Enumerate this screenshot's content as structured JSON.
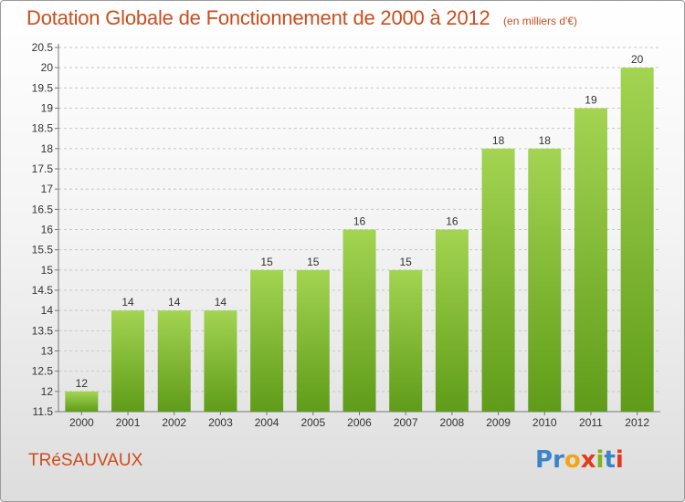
{
  "header": {
    "title": "Dotation Globale de Fonctionnement de 2000 à 2012",
    "subtitle": "(en milliers d'€)"
  },
  "commune": "TRéSAUVAUX",
  "logo": {
    "text": "Proxiti",
    "letter_colors": [
      "#3d83c8",
      "#3d83c8",
      "#f2a51a",
      "#e03c1c",
      "#7cb41e",
      "#3d83c8",
      "#e03c1c"
    ]
  },
  "colors": {
    "bar_light": "#a3d452",
    "bar_dark": "#5f9c19",
    "grid": "#c8c8c8",
    "title": "#cc4d1c"
  },
  "chart_data": {
    "type": "bar",
    "categories": [
      "2000",
      "2001",
      "2002",
      "2003",
      "2004",
      "2005",
      "2006",
      "2007",
      "2008",
      "2009",
      "2010",
      "2011",
      "2012"
    ],
    "values": [
      12,
      14,
      14,
      14,
      15,
      15,
      16,
      15,
      16,
      18,
      18,
      19,
      20
    ],
    "value_labels": [
      "12",
      "14",
      "14",
      "14",
      "15",
      "15",
      "16",
      "15",
      "16",
      "18",
      "18",
      "19",
      "20"
    ],
    "yticks": [
      "11.5",
      "12",
      "12.5",
      "13",
      "13.5",
      "14",
      "14.5",
      "15",
      "15.5",
      "16",
      "16.5",
      "17",
      "17.5",
      "18",
      "18.5",
      "19",
      "19.5",
      "20",
      "20.5"
    ],
    "ylim": [
      11.5,
      20.5
    ],
    "grid": true,
    "title": "Dotation Globale de Fonctionnement de 2000 à 2012",
    "xlabel": "",
    "ylabel": ""
  }
}
